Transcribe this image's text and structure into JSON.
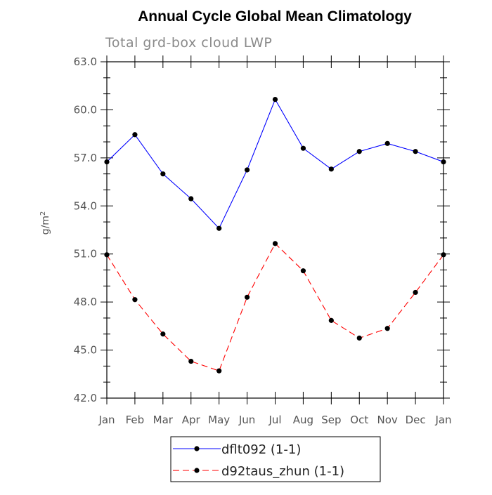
{
  "chart_data": {
    "type": "line",
    "title": "Annual Cycle Global Mean Climatology",
    "subtitle": "Total grd-box cloud LWP",
    "ylabel": "g/m",
    "ylabel_superscript": "2",
    "xlabel": "",
    "categories": [
      "Jan",
      "Feb",
      "Mar",
      "Apr",
      "May",
      "Jun",
      "Jul",
      "Aug",
      "Sep",
      "Oct",
      "Nov",
      "Dec",
      "Jan"
    ],
    "ylim": [
      42.0,
      63.0
    ],
    "yticks": [
      "42.0",
      "45.0",
      "48.0",
      "51.0",
      "54.0",
      "57.0",
      "60.0",
      "63.0"
    ],
    "grid": false,
    "legend_position": "bottom",
    "series": [
      {
        "name": "dflt092 (1-1)",
        "color": "#0000ff",
        "style": "solid",
        "values": [
          56.75,
          58.45,
          56.0,
          54.45,
          52.6,
          56.25,
          60.65,
          57.6,
          56.3,
          57.4,
          57.9,
          57.4,
          56.75
        ]
      },
      {
        "name": "d92taus_zhun (1-1)",
        "color": "#ff0000",
        "style": "dashed",
        "values": [
          50.95,
          48.15,
          46.0,
          44.3,
          43.7,
          48.3,
          51.65,
          49.95,
          46.85,
          45.75,
          46.35,
          48.6,
          50.95
        ]
      }
    ]
  }
}
